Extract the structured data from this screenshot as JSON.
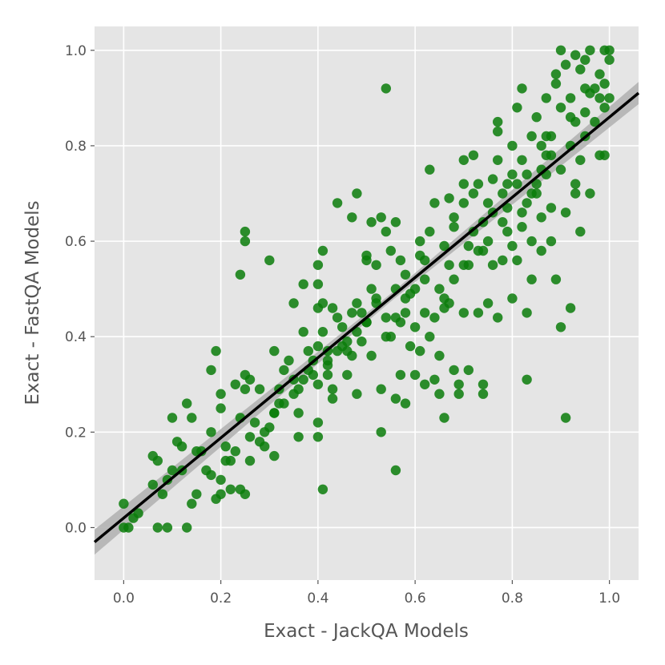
{
  "chart_data": {
    "type": "scatter",
    "title": "",
    "xlabel": "Exact - JackQA Models",
    "ylabel": "Exact - FastQA Models",
    "xlim": [
      -0.06,
      1.06
    ],
    "ylim": [
      -0.11,
      1.05
    ],
    "xticks": [
      "0.0",
      "0.2",
      "0.4",
      "0.6",
      "0.8",
      "1.0"
    ],
    "yticks": [
      "0.0",
      "0.2",
      "0.4",
      "0.6",
      "0.8",
      "1.0"
    ],
    "grid": true,
    "legend": "none",
    "colors": {
      "background": "#e5e5e5",
      "grid": "#ffffff",
      "points": "#0b7d0b",
      "fit_line": "#000000",
      "confidence_band": "#b3b3b3"
    },
    "regression": {
      "slope": 0.84,
      "intercept": 0.02
    },
    "points": [
      [
        0.0,
        0.0
      ],
      [
        0.0,
        0.05
      ],
      [
        0.01,
        0.0
      ],
      [
        0.02,
        0.02
      ],
      [
        0.03,
        0.03
      ],
      [
        0.07,
        0.0
      ],
      [
        0.09,
        0.0
      ],
      [
        0.13,
        0.0
      ],
      [
        0.06,
        0.15
      ],
      [
        0.07,
        0.14
      ],
      [
        0.06,
        0.09
      ],
      [
        0.08,
        0.07
      ],
      [
        0.09,
        0.1
      ],
      [
        0.1,
        0.12
      ],
      [
        0.1,
        0.23
      ],
      [
        0.11,
        0.18
      ],
      [
        0.12,
        0.17
      ],
      [
        0.13,
        0.26
      ],
      [
        0.14,
        0.23
      ],
      [
        0.12,
        0.12
      ],
      [
        0.14,
        0.05
      ],
      [
        0.15,
        0.07
      ],
      [
        0.16,
        0.16
      ],
      [
        0.18,
        0.11
      ],
      [
        0.18,
        0.2
      ],
      [
        0.18,
        0.33
      ],
      [
        0.19,
        0.37
      ],
      [
        0.2,
        0.25
      ],
      [
        0.2,
        0.28
      ],
      [
        0.19,
        0.06
      ],
      [
        0.2,
        0.07
      ],
      [
        0.2,
        0.1
      ],
      [
        0.22,
        0.08
      ],
      [
        0.21,
        0.17
      ],
      [
        0.22,
        0.14
      ],
      [
        0.23,
        0.3
      ],
      [
        0.24,
        0.23
      ],
      [
        0.24,
        0.53
      ],
      [
        0.25,
        0.32
      ],
      [
        0.25,
        0.29
      ],
      [
        0.26,
        0.19
      ],
      [
        0.26,
        0.14
      ],
      [
        0.26,
        0.31
      ],
      [
        0.25,
        0.07
      ],
      [
        0.24,
        0.08
      ],
      [
        0.25,
        0.6
      ],
      [
        0.25,
        0.62
      ],
      [
        0.28,
        0.18
      ],
      [
        0.28,
        0.29
      ],
      [
        0.29,
        0.17
      ],
      [
        0.3,
        0.21
      ],
      [
        0.3,
        0.56
      ],
      [
        0.31,
        0.15
      ],
      [
        0.31,
        0.24
      ],
      [
        0.31,
        0.37
      ],
      [
        0.32,
        0.26
      ],
      [
        0.32,
        0.29
      ],
      [
        0.33,
        0.33
      ],
      [
        0.34,
        0.35
      ],
      [
        0.35,
        0.31
      ],
      [
        0.35,
        0.47
      ],
      [
        0.36,
        0.19
      ],
      [
        0.36,
        0.24
      ],
      [
        0.36,
        0.29
      ],
      [
        0.37,
        0.41
      ],
      [
        0.37,
        0.51
      ],
      [
        0.38,
        0.33
      ],
      [
        0.38,
        0.37
      ],
      [
        0.39,
        0.35
      ],
      [
        0.4,
        0.3
      ],
      [
        0.4,
        0.19
      ],
      [
        0.4,
        0.22
      ],
      [
        0.4,
        0.38
      ],
      [
        0.4,
        0.46
      ],
      [
        0.4,
        0.51
      ],
      [
        0.4,
        0.55
      ],
      [
        0.41,
        0.58
      ],
      [
        0.41,
        0.41
      ],
      [
        0.41,
        0.47
      ],
      [
        0.41,
        0.08
      ],
      [
        0.42,
        0.34
      ],
      [
        0.42,
        0.32
      ],
      [
        0.42,
        0.37
      ],
      [
        0.43,
        0.27
      ],
      [
        0.43,
        0.29
      ],
      [
        0.43,
        0.46
      ],
      [
        0.44,
        0.44
      ],
      [
        0.44,
        0.68
      ],
      [
        0.45,
        0.38
      ],
      [
        0.45,
        0.42
      ],
      [
        0.46,
        0.32
      ],
      [
        0.46,
        0.37
      ],
      [
        0.47,
        0.45
      ],
      [
        0.47,
        0.36
      ],
      [
        0.47,
        0.65
      ],
      [
        0.48,
        0.7
      ],
      [
        0.48,
        0.47
      ],
      [
        0.48,
        0.28
      ],
      [
        0.49,
        0.45
      ],
      [
        0.49,
        0.39
      ],
      [
        0.5,
        0.43
      ],
      [
        0.5,
        0.56
      ],
      [
        0.5,
        0.57
      ],
      [
        0.51,
        0.5
      ],
      [
        0.51,
        0.36
      ],
      [
        0.51,
        0.64
      ],
      [
        0.52,
        0.55
      ],
      [
        0.52,
        0.47
      ],
      [
        0.53,
        0.65
      ],
      [
        0.53,
        0.29
      ],
      [
        0.53,
        0.2
      ],
      [
        0.54,
        0.62
      ],
      [
        0.54,
        0.92
      ],
      [
        0.54,
        0.44
      ],
      [
        0.55,
        0.58
      ],
      [
        0.55,
        0.4
      ],
      [
        0.56,
        0.5
      ],
      [
        0.56,
        0.64
      ],
      [
        0.56,
        0.27
      ],
      [
        0.56,
        0.12
      ],
      [
        0.57,
        0.56
      ],
      [
        0.57,
        0.43
      ],
      [
        0.57,
        0.32
      ],
      [
        0.58,
        0.26
      ],
      [
        0.58,
        0.45
      ],
      [
        0.58,
        0.53
      ],
      [
        0.59,
        0.38
      ],
      [
        0.59,
        0.49
      ],
      [
        0.6,
        0.5
      ],
      [
        0.6,
        0.42
      ],
      [
        0.6,
        0.32
      ],
      [
        0.61,
        0.6
      ],
      [
        0.61,
        0.57
      ],
      [
        0.61,
        0.37
      ],
      [
        0.62,
        0.45
      ],
      [
        0.62,
        0.52
      ],
      [
        0.62,
        0.3
      ],
      [
        0.63,
        0.62
      ],
      [
        0.63,
        0.75
      ],
      [
        0.63,
        0.4
      ],
      [
        0.64,
        0.68
      ],
      [
        0.64,
        0.31
      ],
      [
        0.65,
        0.5
      ],
      [
        0.65,
        0.36
      ],
      [
        0.65,
        0.28
      ],
      [
        0.66,
        0.48
      ],
      [
        0.66,
        0.59
      ],
      [
        0.66,
        0.23
      ],
      [
        0.67,
        0.69
      ],
      [
        0.67,
        0.55
      ],
      [
        0.67,
        0.47
      ],
      [
        0.68,
        0.65
      ],
      [
        0.68,
        0.63
      ],
      [
        0.68,
        0.33
      ],
      [
        0.69,
        0.3
      ],
      [
        0.69,
        0.28
      ],
      [
        0.7,
        0.68
      ],
      [
        0.7,
        0.72
      ],
      [
        0.7,
        0.77
      ],
      [
        0.7,
        0.45
      ],
      [
        0.71,
        0.55
      ],
      [
        0.71,
        0.59
      ],
      [
        0.71,
        0.33
      ],
      [
        0.72,
        0.78
      ],
      [
        0.72,
        0.62
      ],
      [
        0.72,
        0.7
      ],
      [
        0.73,
        0.58
      ],
      [
        0.73,
        0.45
      ],
      [
        0.74,
        0.64
      ],
      [
        0.74,
        0.28
      ],
      [
        0.74,
        0.3
      ],
      [
        0.75,
        0.6
      ],
      [
        0.75,
        0.68
      ],
      [
        0.75,
        0.47
      ],
      [
        0.76,
        0.55
      ],
      [
        0.76,
        0.73
      ],
      [
        0.77,
        0.83
      ],
      [
        0.77,
        0.85
      ],
      [
        0.77,
        0.44
      ],
      [
        0.78,
        0.56
      ],
      [
        0.78,
        0.64
      ],
      [
        0.78,
        0.7
      ],
      [
        0.79,
        0.62
      ],
      [
        0.79,
        0.67
      ],
      [
        0.8,
        0.59
      ],
      [
        0.8,
        0.74
      ],
      [
        0.8,
        0.8
      ],
      [
        0.8,
        0.48
      ],
      [
        0.81,
        0.88
      ],
      [
        0.81,
        0.72
      ],
      [
        0.81,
        0.56
      ],
      [
        0.82,
        0.92
      ],
      [
        0.82,
        0.77
      ],
      [
        0.82,
        0.63
      ],
      [
        0.83,
        0.68
      ],
      [
        0.83,
        0.45
      ],
      [
        0.83,
        0.31
      ],
      [
        0.84,
        0.52
      ],
      [
        0.84,
        0.82
      ],
      [
        0.84,
        0.6
      ],
      [
        0.85,
        0.72
      ],
      [
        0.85,
        0.7
      ],
      [
        0.85,
        0.86
      ],
      [
        0.86,
        0.8
      ],
      [
        0.86,
        0.65
      ],
      [
        0.86,
        0.58
      ],
      [
        0.87,
        0.9
      ],
      [
        0.87,
        0.74
      ],
      [
        0.87,
        0.78
      ],
      [
        0.88,
        0.82
      ],
      [
        0.88,
        0.67
      ],
      [
        0.88,
        0.6
      ],
      [
        0.89,
        0.93
      ],
      [
        0.89,
        0.95
      ],
      [
        0.89,
        0.52
      ],
      [
        0.9,
        1.0
      ],
      [
        0.9,
        0.88
      ],
      [
        0.9,
        0.75
      ],
      [
        0.9,
        0.42
      ],
      [
        0.91,
        0.97
      ],
      [
        0.91,
        0.66
      ],
      [
        0.91,
        0.23
      ],
      [
        0.92,
        0.9
      ],
      [
        0.92,
        0.8
      ],
      [
        0.92,
        0.46
      ],
      [
        0.93,
        0.99
      ],
      [
        0.93,
        0.85
      ],
      [
        0.93,
        0.7
      ],
      [
        0.94,
        0.96
      ],
      [
        0.94,
        0.77
      ],
      [
        0.94,
        0.62
      ],
      [
        0.95,
        0.98
      ],
      [
        0.95,
        0.87
      ],
      [
        0.95,
        0.82
      ],
      [
        0.96,
        1.0
      ],
      [
        0.96,
        0.91
      ],
      [
        0.96,
        0.7
      ],
      [
        0.97,
        0.85
      ],
      [
        0.98,
        0.95
      ],
      [
        0.98,
        0.78
      ],
      [
        0.99,
        1.0
      ],
      [
        0.99,
        0.93
      ],
      [
        0.99,
        0.88
      ],
      [
        1.0,
        1.0
      ],
      [
        1.0,
        0.98
      ],
      [
        1.0,
        0.9
      ],
      [
        0.99,
        0.78
      ],
      [
        0.97,
        0.92
      ],
      [
        0.88,
        0.78
      ],
      [
        0.86,
        0.75
      ],
      [
        0.84,
        0.7
      ],
      [
        0.82,
        0.66
      ],
      [
        0.79,
        0.72
      ],
      [
        0.76,
        0.66
      ],
      [
        0.74,
        0.58
      ],
      [
        0.7,
        0.55
      ],
      [
        0.68,
        0.52
      ],
      [
        0.66,
        0.46
      ],
      [
        0.64,
        0.44
      ],
      [
        0.62,
        0.56
      ],
      [
        0.58,
        0.48
      ],
      [
        0.56,
        0.44
      ],
      [
        0.54,
        0.4
      ],
      [
        0.52,
        0.48
      ],
      [
        0.5,
        0.43
      ],
      [
        0.48,
        0.41
      ],
      [
        0.46,
        0.39
      ],
      [
        0.44,
        0.37
      ],
      [
        0.42,
        0.35
      ],
      [
        0.39,
        0.32
      ],
      [
        0.37,
        0.31
      ],
      [
        0.35,
        0.28
      ],
      [
        0.33,
        0.26
      ],
      [
        0.31,
        0.24
      ],
      [
        0.29,
        0.2
      ],
      [
        0.27,
        0.22
      ],
      [
        0.23,
        0.16
      ],
      [
        0.21,
        0.14
      ],
      [
        0.17,
        0.12
      ],
      [
        0.15,
        0.16
      ],
      [
        0.73,
        0.72
      ],
      [
        0.77,
        0.77
      ],
      [
        0.83,
        0.74
      ],
      [
        0.87,
        0.82
      ],
      [
        0.92,
        0.86
      ],
      [
        0.95,
        0.92
      ],
      [
        0.98,
        0.9
      ],
      [
        0.93,
        0.72
      ]
    ]
  }
}
